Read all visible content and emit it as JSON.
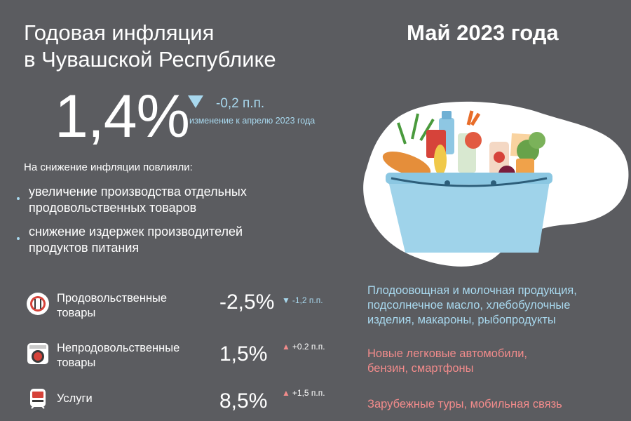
{
  "header": {
    "title_line1": "Годовая инфляция",
    "title_line2": "в Чувашской Республике",
    "period": "Май 2023 года"
  },
  "summary": {
    "inflation": "1,4%",
    "change": "-0,2 п.п.",
    "change_note": "изменение к апрелю 2023 года",
    "change_direction": "down"
  },
  "factors": {
    "title": "На снижение инфляции повлияли:",
    "items": [
      {
        "line1": "увеличение производства отдельных",
        "line2": "продовольственных товаров"
      },
      {
        "line1": "снижение издержек производителей",
        "line2": "продуктов питания"
      }
    ]
  },
  "categories": [
    {
      "icon": "plate-fork-knife-icon",
      "label_line1": "Продовольственные",
      "label_line2": "товары",
      "value": "-2,5%",
      "change": "-1,2 п.п.",
      "direction": "down",
      "comment_lines": [
        "Плодоовощная и молочная продукция,",
        "подсолнечное масло, хлебобулочные",
        "изделия, макароны, рыбопродукты"
      ]
    },
    {
      "icon": "washing-machine-icon",
      "label_line1": "Непродовольственные",
      "label_line2": "товары",
      "value": "1,5%",
      "change": "+0.2 п.п.",
      "direction": "up",
      "comment_lines": [
        "Новые легковые автомобили,",
        "бензин, смартфоны"
      ]
    },
    {
      "icon": "train-icon",
      "label_line1": "Услуги",
      "value": "8,5%",
      "change": "+1,5 п.п.",
      "direction": "up",
      "comment_lines": [
        "Зарубежные туры, мобильная связь"
      ]
    }
  ],
  "colors": {
    "background": "#5b5c60",
    "accent_down": "#a8d8ee",
    "accent_up": "#f28b8b",
    "icon_bg": "#ffffff"
  },
  "illustration": {
    "icon": "grocery-basket-icon"
  }
}
